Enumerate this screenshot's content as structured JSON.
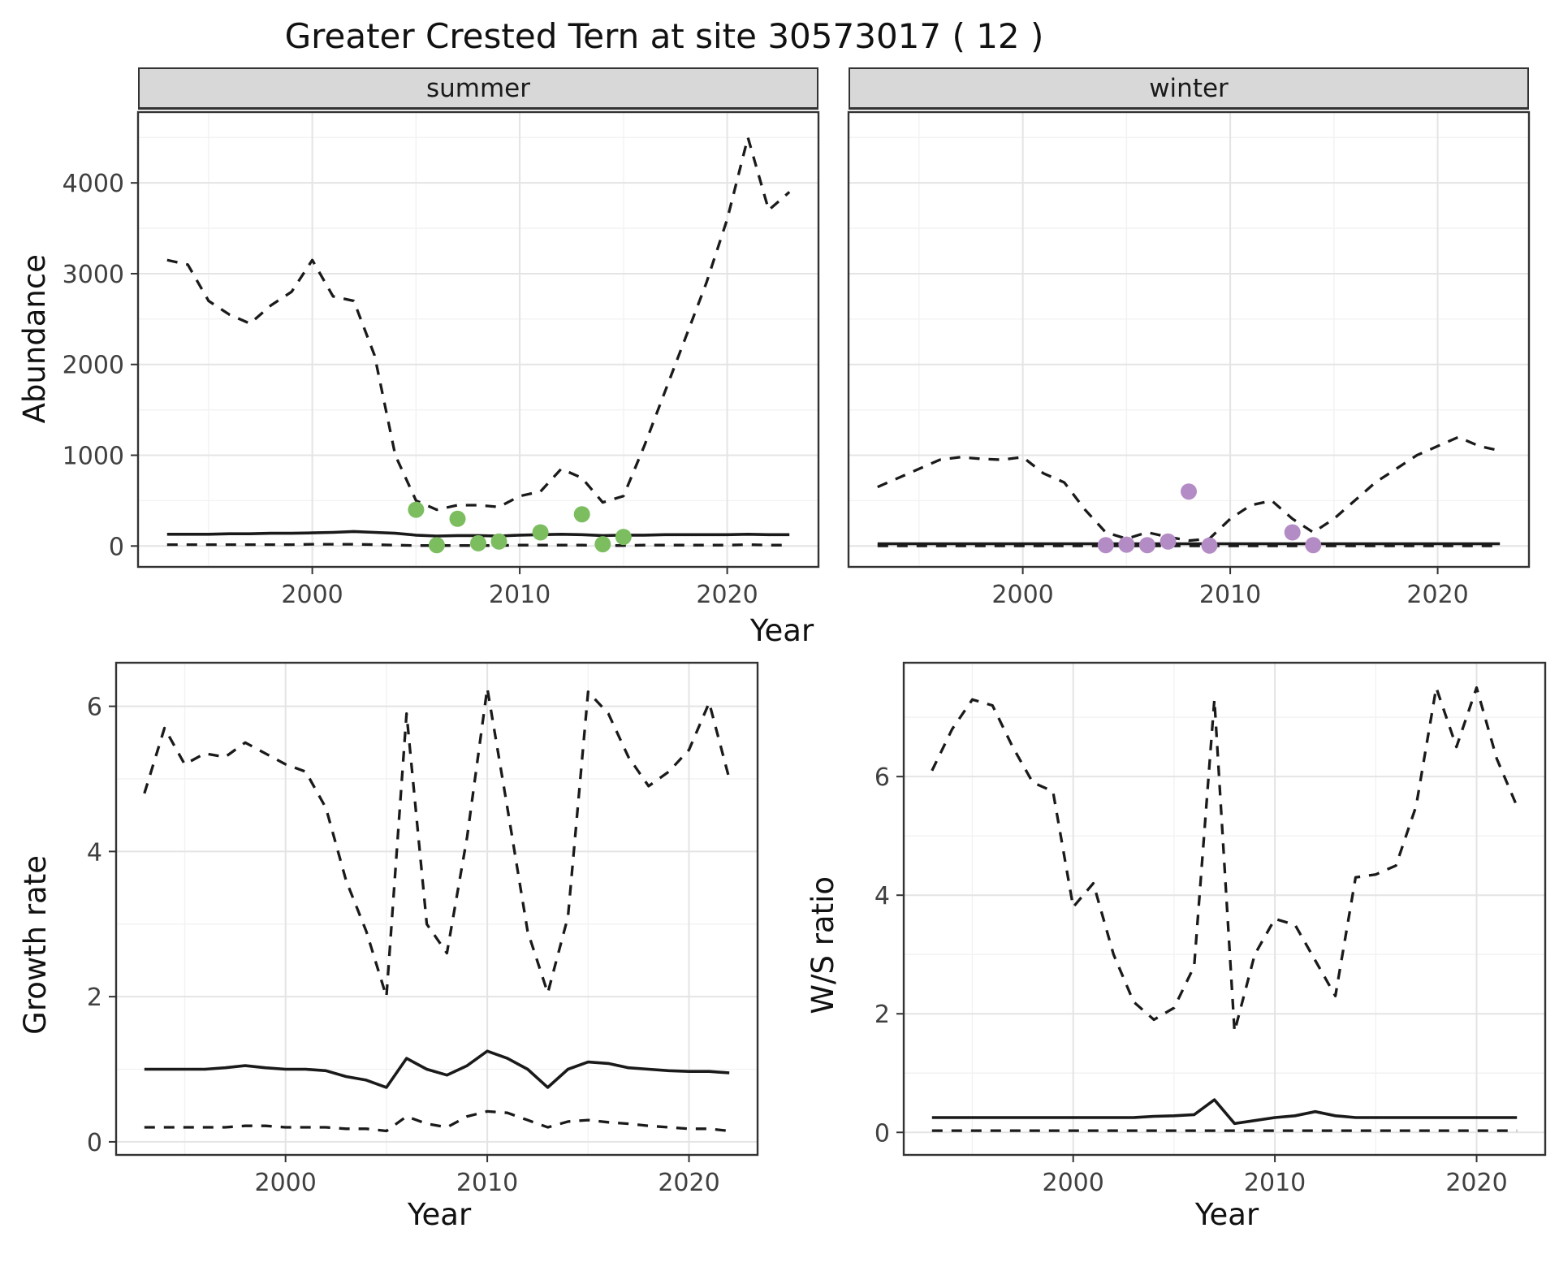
{
  "title": "Greater Crested Tern at site 30573017 ( 12 )",
  "axes": {
    "year": "Year",
    "abundance": "Abundance",
    "growth": "Growth rate",
    "ws": "W/S ratio"
  },
  "colors": {
    "line": "#1a1a1a",
    "observed_summer": "#7cbd5f",
    "observed_winter": "#b48cc5",
    "strip_bg": "#d8d8d8",
    "grid_major": "#e4e4e4",
    "grid_minor": "#f2f2f2",
    "panel_border": "#333333"
  },
  "chart_data": [
    {
      "id": "abundance-summer",
      "type": "line",
      "facet": "summer",
      "xlabel": "Year",
      "ylabel": "Abundance",
      "xlim": [
        1991.6,
        2024.4
      ],
      "ylim": [
        -230,
        4780
      ],
      "xticks": [
        2000,
        2010,
        2020
      ],
      "xticks_minor": [
        1995,
        2005,
        2015
      ],
      "yticks": [
        0,
        1000,
        2000,
        3000,
        4000
      ],
      "yticks_minor": [
        500,
        1500,
        2500,
        3500,
        4500
      ],
      "x": [
        1993,
        1994,
        1995,
        1996,
        1997,
        1998,
        1999,
        2000,
        2001,
        2002,
        2003,
        2004,
        2005,
        2006,
        2007,
        2008,
        2009,
        2010,
        2011,
        2012,
        2013,
        2014,
        2015,
        2016,
        2017,
        2018,
        2019,
        2020,
        2021,
        2022,
        2023
      ],
      "series": [
        {
          "name": "upper-ci",
          "style": "dashed",
          "values": [
            3150,
            3100,
            2700,
            2550,
            2450,
            2650,
            2800,
            3150,
            2750,
            2700,
            2100,
            1000,
            500,
            400,
            450,
            450,
            430,
            550,
            600,
            850,
            750,
            480,
            550,
            1100,
            1700,
            2300,
            2900,
            3600,
            4500,
            3700,
            3900
          ]
        },
        {
          "name": "median",
          "style": "solid",
          "values": [
            130,
            130,
            130,
            135,
            135,
            140,
            140,
            145,
            150,
            160,
            150,
            140,
            120,
            110,
            115,
            115,
            110,
            120,
            125,
            130,
            125,
            115,
            120,
            120,
            125,
            125,
            125,
            125,
            130,
            125,
            125
          ]
        },
        {
          "name": "lower-ci",
          "style": "dashed",
          "values": [
            15,
            15,
            15,
            15,
            15,
            15,
            15,
            20,
            20,
            20,
            15,
            10,
            5,
            5,
            5,
            5,
            5,
            10,
            10,
            10,
            10,
            5,
            5,
            10,
            10,
            10,
            10,
            10,
            15,
            10,
            10
          ]
        }
      ],
      "points": {
        "name": "observed-counts",
        "color": "#7cbd5f",
        "x": [
          2005,
          2006,
          2007,
          2008,
          2009,
          2011,
          2013,
          2014,
          2015
        ],
        "y": [
          400,
          10,
          300,
          30,
          50,
          150,
          350,
          20,
          100
        ]
      }
    },
    {
      "id": "abundance-winter",
      "type": "line",
      "facet": "winter",
      "xlabel": "Year",
      "ylabel": "Abundance",
      "xlim": [
        1991.6,
        2024.4
      ],
      "ylim": [
        -230,
        4780
      ],
      "xticks": [
        2000,
        2010,
        2020
      ],
      "xticks_minor": [
        1995,
        2005,
        2015
      ],
      "yticks": [
        0,
        1000,
        2000,
        3000,
        4000
      ],
      "yticks_minor": [
        500,
        1500,
        2500,
        3500,
        4500
      ],
      "x": [
        1993,
        1994,
        1995,
        1996,
        1997,
        1998,
        1999,
        2000,
        2001,
        2002,
        2003,
        2004,
        2005,
        2006,
        2007,
        2008,
        2009,
        2010,
        2011,
        2012,
        2013,
        2014,
        2015,
        2016,
        2017,
        2018,
        2019,
        2020,
        2021,
        2022,
        2023
      ],
      "series": [
        {
          "name": "upper-ci",
          "style": "dashed",
          "values": [
            650,
            750,
            850,
            950,
            980,
            960,
            950,
            980,
            800,
            700,
            400,
            150,
            80,
            150,
            100,
            60,
            80,
            300,
            450,
            500,
            300,
            150,
            300,
            500,
            700,
            850,
            1000,
            1100,
            1200,
            1100,
            1050
          ]
        },
        {
          "name": "median",
          "style": "solid",
          "values": [
            25,
            25,
            25,
            25,
            25,
            25,
            25,
            25,
            25,
            25,
            25,
            25,
            25,
            25,
            25,
            25,
            25,
            25,
            25,
            25,
            25,
            25,
            25,
            25,
            25,
            25,
            25,
            25,
            25,
            25,
            25
          ]
        },
        {
          "name": "lower-ci",
          "style": "dashed",
          "values": [
            2,
            2,
            2,
            2,
            2,
            2,
            2,
            2,
            2,
            2,
            2,
            2,
            2,
            2,
            2,
            2,
            2,
            2,
            2,
            2,
            2,
            2,
            2,
            2,
            2,
            2,
            2,
            2,
            2,
            2,
            2
          ]
        }
      ],
      "points": {
        "name": "observed-counts",
        "color": "#b48cc5",
        "x": [
          2004,
          2005,
          2006,
          2007,
          2008,
          2009,
          2013,
          2014
        ],
        "y": [
          10,
          15,
          10,
          50,
          600,
          5,
          150,
          10
        ]
      }
    },
    {
      "id": "growth-rate",
      "type": "line",
      "facet": null,
      "xlabel": "Year",
      "ylabel": "Growth rate",
      "xlim": [
        1991.6,
        2023.4
      ],
      "ylim": [
        -0.18,
        6.6
      ],
      "xticks": [
        2000,
        2010,
        2020
      ],
      "xticks_minor": [
        1995,
        2005,
        2015
      ],
      "yticks": [
        0,
        2,
        4,
        6
      ],
      "yticks_minor": [
        1,
        3,
        5
      ],
      "x": [
        1993,
        1994,
        1995,
        1996,
        1997,
        1998,
        1999,
        2000,
        2001,
        2002,
        2003,
        2004,
        2005,
        2006,
        2007,
        2008,
        2009,
        2010,
        2011,
        2012,
        2013,
        2014,
        2015,
        2016,
        2017,
        2018,
        2019,
        2020,
        2021,
        2022
      ],
      "series": [
        {
          "name": "upper-ci",
          "style": "dashed",
          "values": [
            4.8,
            5.7,
            5.2,
            5.35,
            5.3,
            5.5,
            5.35,
            5.2,
            5.1,
            4.6,
            3.6,
            2.9,
            2.0,
            5.9,
            3.0,
            2.6,
            4.2,
            6.25,
            4.6,
            2.9,
            2.05,
            3.1,
            6.2,
            5.9,
            5.3,
            4.9,
            5.1,
            5.4,
            6.05,
            5.0
          ]
        },
        {
          "name": "median",
          "style": "solid",
          "values": [
            1.0,
            1.0,
            1.0,
            1.0,
            1.02,
            1.05,
            1.02,
            1.0,
            1.0,
            0.98,
            0.9,
            0.85,
            0.75,
            1.15,
            1.0,
            0.92,
            1.05,
            1.25,
            1.15,
            1.0,
            0.75,
            1.0,
            1.1,
            1.08,
            1.02,
            1.0,
            0.98,
            0.97,
            0.97,
            0.95
          ]
        },
        {
          "name": "lower-ci",
          "style": "dashed",
          "values": [
            0.2,
            0.2,
            0.2,
            0.2,
            0.2,
            0.22,
            0.22,
            0.2,
            0.2,
            0.2,
            0.18,
            0.18,
            0.15,
            0.35,
            0.25,
            0.2,
            0.35,
            0.42,
            0.4,
            0.3,
            0.2,
            0.28,
            0.3,
            0.27,
            0.25,
            0.22,
            0.2,
            0.18,
            0.18,
            0.15
          ]
        }
      ],
      "points": null
    },
    {
      "id": "ws-ratio",
      "type": "line",
      "facet": null,
      "xlabel": "Year",
      "ylabel": "W/S ratio",
      "xlim": [
        1991.6,
        2023.4
      ],
      "ylim": [
        -0.38,
        7.92
      ],
      "xticks": [
        2000,
        2010,
        2020
      ],
      "xticks_minor": [
        1995,
        2005,
        2015
      ],
      "yticks": [
        0,
        2,
        4,
        6
      ],
      "yticks_minor": [
        1,
        3,
        5,
        7
      ],
      "x": [
        1993,
        1994,
        1995,
        1996,
        1997,
        1998,
        1999,
        2000,
        2001,
        2002,
        2003,
        2004,
        2005,
        2006,
        2007,
        2008,
        2009,
        2010,
        2011,
        2012,
        2013,
        2014,
        2015,
        2016,
        2017,
        2018,
        2019,
        2020,
        2021,
        2022
      ],
      "series": [
        {
          "name": "upper-ci",
          "style": "dashed",
          "values": [
            6.1,
            6.8,
            7.3,
            7.2,
            6.5,
            5.9,
            5.75,
            3.8,
            4.2,
            3.0,
            2.2,
            1.9,
            2.1,
            2.8,
            7.3,
            1.7,
            3.0,
            3.6,
            3.5,
            2.9,
            2.3,
            4.3,
            4.35,
            4.5,
            5.5,
            7.5,
            6.5,
            7.5,
            6.3,
            5.5
          ]
        },
        {
          "name": "median",
          "style": "solid",
          "values": [
            0.25,
            0.25,
            0.25,
            0.25,
            0.25,
            0.25,
            0.25,
            0.25,
            0.25,
            0.25,
            0.25,
            0.27,
            0.28,
            0.3,
            0.55,
            0.15,
            0.2,
            0.25,
            0.28,
            0.35,
            0.28,
            0.25,
            0.25,
            0.25,
            0.25,
            0.25,
            0.25,
            0.25,
            0.25,
            0.25
          ]
        },
        {
          "name": "lower-ci",
          "style": "dashed",
          "values": [
            0.03,
            0.03,
            0.03,
            0.03,
            0.03,
            0.03,
            0.03,
            0.03,
            0.03,
            0.03,
            0.03,
            0.03,
            0.03,
            0.03,
            0.03,
            0.03,
            0.03,
            0.03,
            0.03,
            0.03,
            0.03,
            0.03,
            0.03,
            0.03,
            0.03,
            0.03,
            0.03,
            0.03,
            0.03,
            0.03
          ]
        }
      ],
      "points": null
    }
  ]
}
